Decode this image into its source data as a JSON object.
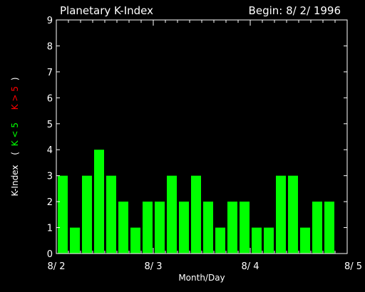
{
  "chart_data": {
    "type": "bar",
    "title": "Planetary K-Index",
    "begin_label": "Begin: 8/ 2/ 1996",
    "xlabel": "Month/Day",
    "ylabel": {
      "main": "K-Index",
      "open_paren": "(",
      "low_label": "K < 5",
      "high_label": "K > 5",
      "close_paren": ")"
    },
    "ylim": [
      0,
      9
    ],
    "yticks": [
      "0",
      "1",
      "2",
      "3",
      "4",
      "5",
      "6",
      "7",
      "8",
      "9"
    ],
    "xticks": [
      "8/ 2",
      "8/ 3",
      "8/ 4",
      "8/ 5"
    ],
    "bins_per_day": 8,
    "days": 3,
    "values": [
      3,
      1,
      3,
      4,
      3,
      2,
      1,
      2,
      2,
      3,
      2,
      3,
      2,
      1,
      2,
      2,
      1,
      1,
      3,
      3,
      1,
      2,
      2
    ],
    "colors": {
      "background": "#000000",
      "frame": "#ffffff",
      "bar_low": "#00ff00",
      "bar_high": "#ff0000",
      "label_low": "#00ff00",
      "label_high": "#ff0000"
    },
    "threshold": 5
  }
}
